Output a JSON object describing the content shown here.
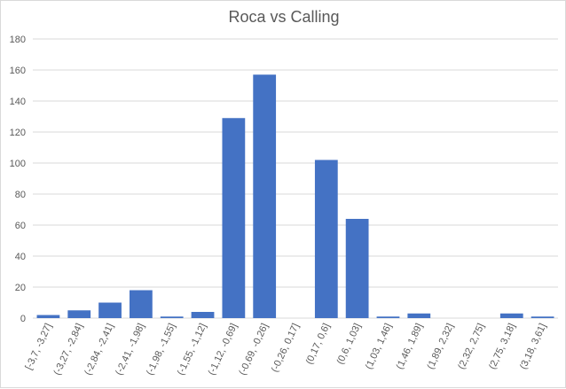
{
  "chart_data": {
    "type": "bar",
    "title": "Roca vs Calling",
    "xlabel": "",
    "ylabel": "",
    "ylim": [
      0,
      180
    ],
    "yticks": [
      0,
      20,
      40,
      60,
      80,
      100,
      120,
      140,
      160,
      180
    ],
    "grid": true,
    "legend": "none",
    "bar_color": "#4472c4",
    "categories": [
      "[-3,7, -3,27]",
      "(-3,27, -2,84]",
      "(-2,84, -2,41]",
      "(-2,41, -1,98]",
      "(-1,98, -1,55]",
      "(-1,55, -1,12]",
      "(-1,12, -0,69]",
      "(-0,69, -0,26]",
      "(-0,26, 0,17]",
      "(0,17, 0,6]",
      "(0,6, 1,03]",
      "(1,03, 1,46]",
      "(1,46, 1,89]",
      "(1,89, 2,32]",
      "(2,32, 2,75]",
      "(2,75, 3,18]",
      "(3,18, 3,61]"
    ],
    "values": [
      2,
      5,
      10,
      18,
      1,
      4,
      129,
      157,
      0,
      102,
      64,
      1,
      3,
      0,
      0,
      3,
      1
    ]
  }
}
